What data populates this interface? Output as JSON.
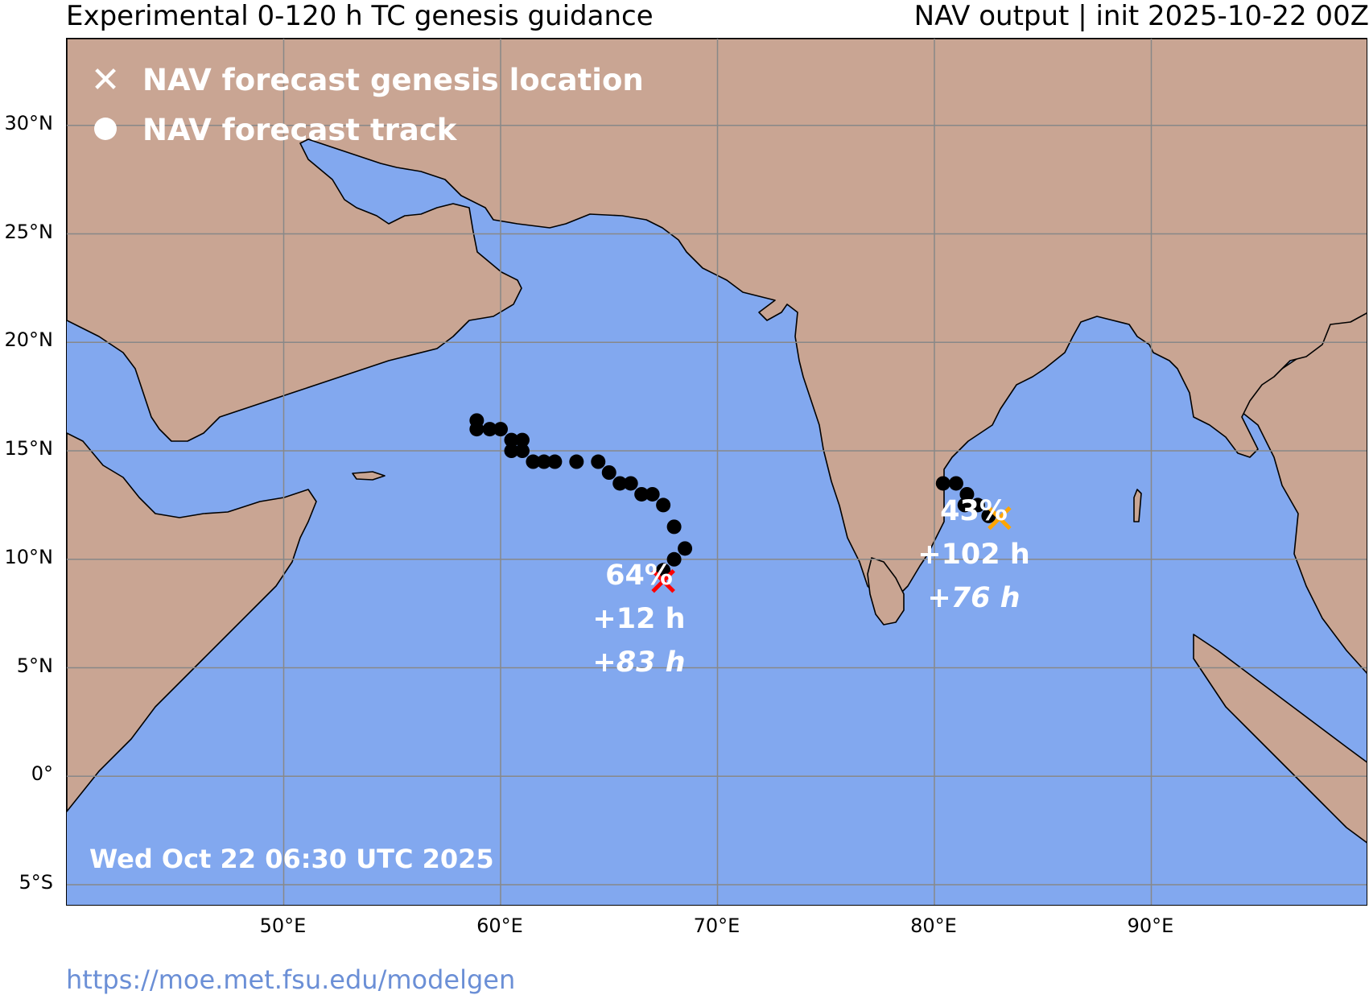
{
  "header": {
    "title_left": "Experimental 0-120 h TC genesis guidance",
    "title_right": "NAV output | init 2025-10-22 00Z"
  },
  "map": {
    "extent": {
      "lon_min": 40,
      "lon_max": 100,
      "lat_min": -6,
      "lat_max": 34
    },
    "ocean_color": "#82a8ef",
    "land_color": "#c9a593",
    "grid_color": "#888888",
    "lat_ticks": [
      {
        "value": 30,
        "label": "30°N"
      },
      {
        "value": 25,
        "label": "25°N"
      },
      {
        "value": 20,
        "label": "20°N"
      },
      {
        "value": 15,
        "label": "15°N"
      },
      {
        "value": 10,
        "label": "10°N"
      },
      {
        "value": 5,
        "label": "5°N"
      },
      {
        "value": 0,
        "label": "0°"
      },
      {
        "value": -5,
        "label": "5°S"
      }
    ],
    "lon_ticks": [
      {
        "value": 50,
        "label": "50°E"
      },
      {
        "value": 60,
        "label": "60°E"
      },
      {
        "value": 70,
        "label": "70°E"
      },
      {
        "value": 80,
        "label": "80°E"
      },
      {
        "value": 90,
        "label": "90°E"
      }
    ]
  },
  "legend": {
    "genesis_label": "NAV forecast genesis location",
    "genesis_symbol": "✕",
    "track_label": "NAV forecast track"
  },
  "systems": [
    {
      "genesis": {
        "lon": 67.5,
        "lat": 9.0
      },
      "color": "#ff0000",
      "probability": "64%",
      "genesis_time": "+12 h",
      "lead_time": "+83 h",
      "track": [
        [
          58.9,
          16.4
        ],
        [
          58.9,
          16.0
        ],
        [
          59.5,
          16.0
        ],
        [
          60.0,
          16.0
        ],
        [
          60.5,
          15.5
        ],
        [
          61.0,
          15.5
        ],
        [
          60.5,
          15.0
        ],
        [
          61.0,
          15.0
        ],
        [
          61.5,
          14.5
        ],
        [
          62.0,
          14.5
        ],
        [
          62.5,
          14.5
        ],
        [
          63.5,
          14.5
        ],
        [
          64.5,
          14.5
        ],
        [
          65.0,
          14.0
        ],
        [
          65.5,
          13.5
        ],
        [
          66.0,
          13.5
        ],
        [
          66.5,
          13.0
        ],
        [
          67.0,
          13.0
        ],
        [
          67.5,
          12.5
        ],
        [
          68.0,
          11.5
        ],
        [
          68.5,
          10.5
        ],
        [
          68.0,
          10.0
        ],
        [
          67.5,
          9.5
        ]
      ]
    },
    {
      "genesis": {
        "lon": 83.0,
        "lat": 11.9
      },
      "color": "#ffa500",
      "probability": "43%",
      "genesis_time": "+102 h",
      "lead_time": "+76 h",
      "track": [
        [
          80.4,
          13.5
        ],
        [
          81.0,
          13.5
        ],
        [
          81.5,
          13.0
        ],
        [
          81.4,
          12.5
        ],
        [
          82.0,
          12.5
        ],
        [
          82.5,
          12.0
        ]
      ]
    }
  ],
  "timestamp": "Wed Oct 22 06:30 UTC 2025",
  "url": "https://moe.met.fsu.edu/modelgen"
}
